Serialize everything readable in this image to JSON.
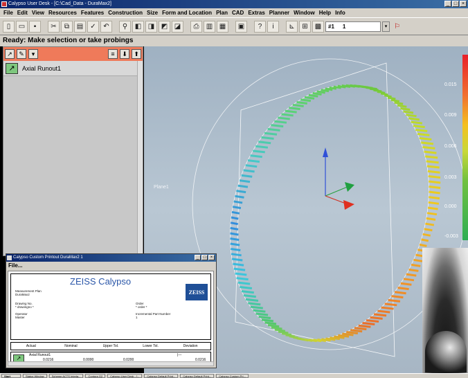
{
  "window": {
    "title": "Calypso User Desk - [C:\\Cad_Data - DuraMax2]",
    "controls": [
      "_",
      "□",
      "×"
    ]
  },
  "menu": [
    "File",
    "Edit",
    "View",
    "Resources",
    "Features",
    "Construction",
    "Size",
    "Form and Location",
    "Plan",
    "CAD",
    "Extras",
    "Planner",
    "Window",
    "Help",
    "Info"
  ],
  "toolbar": {
    "icons": [
      "new-icon",
      "open-icon",
      "save-icon",
      "cut-icon",
      "copy-icon",
      "paste-icon",
      "check-icon",
      "undo-icon",
      "binoculars-icon",
      "view1-icon",
      "view2-icon",
      "view3-icon",
      "view4-icon",
      "print-icon",
      "clipboard-icon",
      "table-icon",
      "printer-icon",
      "help-icon",
      "info-icon",
      "chart-icon",
      "grid-icon",
      "panel-icon"
    ],
    "select_label": "#1",
    "select_value": "1",
    "pin_icon": "pin-icon"
  },
  "status": "Ready: Make selection or take probings",
  "left_panel": {
    "items": [
      {
        "label": "Axial Runout1",
        "icon": "runout-icon"
      }
    ]
  },
  "viewport": {
    "plane_label": "Plane1",
    "scale_labels": [
      "0.015",
      "0.009",
      "0.006",
      "0.003",
      "0.000",
      "-0.003"
    ]
  },
  "printout": {
    "title": "Calypso Custom Printout  DuraMax2      1",
    "menu": "File...",
    "brand": "ZEISS  Calypso",
    "logo": "ZEISS",
    "fields": {
      "plan_label": "Measurement Plan",
      "plan_value": "DuraMax2",
      "drawing_label": "Drawing No.",
      "drawing_value": "* drawingno *",
      "order_label": "Order",
      "order_value": "* order *",
      "operator_label": "Operator",
      "operator_value": "Master",
      "part_label": "Incremental Part Number",
      "part_value": "1"
    },
    "columns": [
      "Actual",
      "Nominal",
      "Upper Tol.",
      "Lower Tol.",
      "Deviation"
    ],
    "row": {
      "name": "Axial Runout1",
      "actual": "0.0216",
      "nominal": "0.0000",
      "upper": "0.0200",
      "marker": "|---",
      "deviation": "0.0216"
    }
  },
  "taskbar": [
    "Start",
    "Status Window",
    "Scheme ACTS Interla...",
    "Contura G2",
    "Calypso User Desk - [...",
    "Calypso Default Print...",
    "Calypso Default Print...",
    "Calypso Custom Pri..."
  ]
}
